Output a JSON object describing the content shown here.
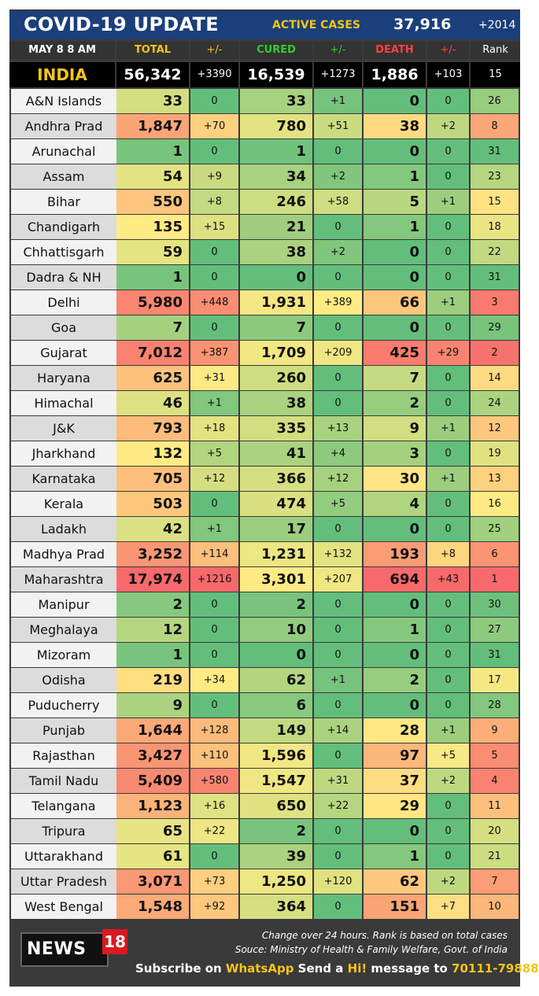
{
  "header": {
    "title": "COVID-19 UPDATE",
    "active_label": "ACTIVE CASES",
    "active_value": "37,916",
    "active_change": "+2014"
  },
  "columns": {
    "date": "MAY 8  8 AM",
    "total": "TOTAL",
    "total_chg": "+/-",
    "cured": "CURED",
    "cured_chg": "+/-",
    "death": "DEATH",
    "death_chg": "+/-",
    "rank": "Rank"
  },
  "india": {
    "name": "INDIA",
    "total": "56,342",
    "total_chg": "+3390",
    "cured": "16,539",
    "cured_chg": "+1273",
    "death": "1,886",
    "death_chg": "+103",
    "rank": "15"
  },
  "rows": [
    [
      "A&N Islands",
      "33",
      "0",
      "33",
      "+1",
      "0",
      "0",
      "26"
    ],
    [
      "Andhra Prad",
      "1,847",
      "+70",
      "780",
      "+51",
      "38",
      "+2",
      "8"
    ],
    [
      "Arunachal",
      "1",
      "0",
      "1",
      "0",
      "0",
      "0",
      "31"
    ],
    [
      "Assam",
      "54",
      "+9",
      "34",
      "+2",
      "1",
      "0",
      "23"
    ],
    [
      "Bihar",
      "550",
      "+8",
      "246",
      "+58",
      "5",
      "+1",
      "15"
    ],
    [
      "Chandigarh",
      "135",
      "+15",
      "21",
      "0",
      "1",
      "0",
      "18"
    ],
    [
      "Chhattisgarh",
      "59",
      "0",
      "38",
      "+2",
      "0",
      "0",
      "22"
    ],
    [
      "Dadra & NH",
      "1",
      "0",
      "0",
      "0",
      "0",
      "0",
      "31"
    ],
    [
      "Delhi",
      "5,980",
      "+448",
      "1,931",
      "+389",
      "66",
      "+1",
      "3"
    ],
    [
      "Goa",
      "7",
      "0",
      "7",
      "0",
      "0",
      "0",
      "29"
    ],
    [
      "Gujarat",
      "7,012",
      "+387",
      "1,709",
      "+209",
      "425",
      "+29",
      "2"
    ],
    [
      "Haryana",
      "625",
      "+31",
      "260",
      "0",
      "7",
      "0",
      "14"
    ],
    [
      "Himachal",
      "46",
      "+1",
      "38",
      "0",
      "2",
      "0",
      "24"
    ],
    [
      "J&K",
      "793",
      "+18",
      "335",
      "+13",
      "9",
      "+1",
      "12"
    ],
    [
      "Jharkhand",
      "132",
      "+5",
      "41",
      "+4",
      "3",
      "0",
      "19"
    ],
    [
      "Karnataka",
      "705",
      "+12",
      "366",
      "+12",
      "30",
      "+1",
      "13"
    ],
    [
      "Kerala",
      "503",
      "0",
      "474",
      "+5",
      "4",
      "0",
      "16"
    ],
    [
      "Ladakh",
      "42",
      "+1",
      "17",
      "0",
      "0",
      "0",
      "25"
    ],
    [
      "Madhya Prad",
      "3,252",
      "+114",
      "1,231",
      "+132",
      "193",
      "+8",
      "6"
    ],
    [
      "Maharashtra",
      "17,974",
      "+1216",
      "3,301",
      "+207",
      "694",
      "+43",
      "1"
    ],
    [
      "Manipur",
      "2",
      "0",
      "2",
      "0",
      "0",
      "0",
      "30"
    ],
    [
      "Meghalaya",
      "12",
      "0",
      "10",
      "0",
      "1",
      "0",
      "27"
    ],
    [
      "Mizoram",
      "1",
      "0",
      "0",
      "0",
      "0",
      "0",
      "31"
    ],
    [
      "Odisha",
      "219",
      "+34",
      "62",
      "+1",
      "2",
      "0",
      "17"
    ],
    [
      "Puducherry",
      "9",
      "0",
      "6",
      "0",
      "0",
      "0",
      "28"
    ],
    [
      "Punjab",
      "1,644",
      "+128",
      "149",
      "+14",
      "28",
      "+1",
      "9"
    ],
    [
      "Rajasthan",
      "3,427",
      "+110",
      "1,596",
      "0",
      "97",
      "+5",
      "5"
    ],
    [
      "Tamil Nadu",
      "5,409",
      "+580",
      "1,547",
      "+31",
      "37",
      "+2",
      "4"
    ],
    [
      "Telangana",
      "1,123",
      "+16",
      "650",
      "+22",
      "29",
      "0",
      "11"
    ],
    [
      "Tripura",
      "65",
      "+22",
      "2",
      "0",
      "0",
      "0",
      "20"
    ],
    [
      "Uttarakhand",
      "61",
      "0",
      "39",
      "0",
      "1",
      "0",
      "21"
    ],
    [
      "Uttar Pradesh",
      "3,071",
      "+73",
      "1,250",
      "+120",
      "62",
      "+2",
      "7"
    ],
    [
      "West Bengal",
      "1,548",
      "+92",
      "364",
      "0",
      "151",
      "+7",
      "10"
    ]
  ],
  "footer": {
    "logo_text": "NEWS",
    "logo_num": "18",
    "note1": "Change over 24 hours. Rank is based on total cases",
    "note2": "Souce: Ministry of Health & Family Welfare, Govt. of India",
    "subscribe_a": "Subscribe on ",
    "subscribe_b": "WhatsApp",
    "subscribe_c": " Send a ",
    "subscribe_d": "Hi!",
    "subscribe_e": " message to ",
    "subscribe_f": "70111-79888"
  },
  "colors": {
    "header_bg": "#1b3f7a",
    "accent_yellow": "#f5c518",
    "total_green": "#32cd32",
    "death_red": "#e03131",
    "heat_green": "#63be7b",
    "heat_yellow": "#ffeb84",
    "heat_red": "#f8696b"
  }
}
